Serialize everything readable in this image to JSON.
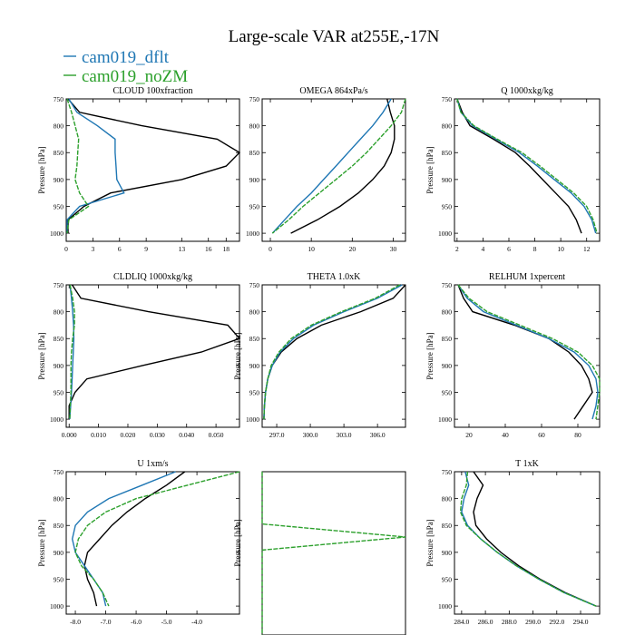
{
  "figure": {
    "title": "Large-scale VAR at255E,-17N",
    "legend": [
      {
        "label": "cam019_dflt",
        "color": "#1f77b4"
      },
      {
        "label": "cam019_noZM",
        "color": "#2ca02c"
      }
    ]
  },
  "chart_data": [
    {
      "type": "line",
      "title": "CLOUD  100xfraction",
      "ylabel": "Pressure [hPa]",
      "y_reversed": true,
      "xlim": [
        0,
        19.5
      ],
      "ylim": [
        750,
        1015
      ],
      "xticks": [
        0,
        3,
        6,
        9,
        13,
        16,
        18
      ],
      "xtick_labels": [
        "0",
        "3",
        "6",
        "9",
        "13",
        "16",
        "18"
      ],
      "yticks": [
        750,
        800,
        850,
        900,
        950,
        1000
      ],
      "y": [
        750,
        775,
        800,
        825,
        850,
        875,
        900,
        925,
        950,
        975,
        1000
      ],
      "series": [
        {
          "color": "#000000",
          "x": [
            0.2,
            1.5,
            8.5,
            17.0,
            19.5,
            18.0,
            13.0,
            5.0,
            2.0,
            0.2,
            0.2
          ]
        },
        {
          "color": "#1f77b4",
          "x": [
            0.3,
            1.2,
            3.5,
            5.5,
            5.5,
            5.6,
            5.7,
            6.5,
            1.5,
            0.1,
            0.1
          ]
        },
        {
          "color": "#2ca02c",
          "x": [
            0.1,
            0.6,
            1.0,
            1.4,
            1.3,
            1.2,
            1.0,
            1.5,
            2.5,
            0.3,
            0.1
          ]
        }
      ]
    },
    {
      "type": "line",
      "title": "OMEGA  864xPa/s",
      "ylabel": "",
      "y_reversed": true,
      "xlim": [
        -2,
        33
      ],
      "ylim": [
        750,
        1015
      ],
      "xticks": [
        0,
        10,
        20,
        30
      ],
      "xtick_labels": [
        "0",
        "10",
        "20",
        "30"
      ],
      "yticks": [
        750,
        800,
        850,
        900,
        950,
        1000
      ],
      "y": [
        750,
        775,
        800,
        825,
        850,
        875,
        900,
        925,
        950,
        975,
        1000
      ],
      "series": [
        {
          "color": "#000000",
          "x": [
            28.5,
            29.3,
            30.3,
            30.3,
            29.5,
            27.8,
            25.0,
            21.5,
            17.0,
            11.5,
            5.0
          ]
        },
        {
          "color": "#1f77b4",
          "x": [
            29.5,
            27.5,
            25.0,
            22.0,
            19.0,
            16.0,
            13.0,
            10.0,
            6.5,
            3.5,
            0.5
          ]
        },
        {
          "color": "#2ca02c",
          "x": [
            33.0,
            32.0,
            29.5,
            26.5,
            23.5,
            20.0,
            16.0,
            12.0,
            8.0,
            4.5,
            0.5
          ]
        }
      ]
    },
    {
      "type": "line",
      "title": "Q  1000xkg/kg",
      "ylabel": "Pressure [hPa]",
      "y_reversed": true,
      "xlim": [
        1.8,
        13
      ],
      "ylim": [
        750,
        1015
      ],
      "xticks": [
        2,
        4,
        6,
        8,
        10,
        12
      ],
      "xtick_labels": [
        "2",
        "4",
        "6",
        "8",
        "10",
        "12"
      ],
      "yticks": [
        750,
        800,
        850,
        900,
        950,
        1000
      ],
      "y": [
        750,
        775,
        800,
        825,
        850,
        875,
        900,
        925,
        950,
        975,
        1000
      ],
      "series": [
        {
          "color": "#000000",
          "x": [
            2.0,
            2.4,
            3.0,
            4.8,
            6.5,
            7.6,
            8.6,
            9.6,
            10.6,
            11.2,
            11.6
          ]
        },
        {
          "color": "#1f77b4",
          "x": [
            2.0,
            2.3,
            3.2,
            5.0,
            6.8,
            8.2,
            9.5,
            10.8,
            11.8,
            12.4,
            12.7
          ]
        },
        {
          "color": "#2ca02c",
          "x": [
            2.0,
            2.3,
            3.3,
            5.1,
            7.0,
            8.4,
            9.7,
            11.0,
            12.0,
            12.5,
            12.8
          ]
        }
      ]
    },
    {
      "type": "line",
      "title": "CLDLIQ  1000xkg/kg",
      "ylabel": "Pressure [hPa]",
      "y_reversed": true,
      "xlim": [
        -0.001,
        0.058
      ],
      "ylim": [
        750,
        1015
      ],
      "xticks": [
        0,
        0.01,
        0.02,
        0.03,
        0.04,
        0.05
      ],
      "xtick_labels": [
        "0.000",
        "0.010",
        "0.020",
        "0.030",
        "0.040",
        "0.050"
      ],
      "yticks": [
        750,
        800,
        850,
        900,
        950,
        1000
      ],
      "y": [
        750,
        775,
        800,
        825,
        850,
        875,
        900,
        925,
        950,
        975,
        1000
      ],
      "series": [
        {
          "color": "#000000",
          "x": [
            0.001,
            0.004,
            0.027,
            0.054,
            0.058,
            0.045,
            0.025,
            0.006,
            0.002,
            0.0,
            0.0
          ]
        },
        {
          "color": "#1f77b4",
          "x": [
            0.0003,
            0.0008,
            0.0012,
            0.0015,
            0.0016,
            0.0014,
            0.0012,
            0.001,
            0.0008,
            0.0005,
            0.0002
          ]
        },
        {
          "color": "#2ca02c",
          "x": [
            0.0003,
            0.0012,
            0.0018,
            0.0018,
            0.0012,
            0.0008,
            0.0006,
            0.0006,
            0.0006,
            0.0004,
            0.0002
          ]
        }
      ]
    },
    {
      "type": "line",
      "title": "THETA  1.0xK",
      "ylabel": "Pressure [hPa]",
      "y_reversed": true,
      "xlim": [
        295.7,
        308.5
      ],
      "ylim": [
        750,
        1015
      ],
      "xticks": [
        297,
        300,
        303,
        306
      ],
      "xtick_labels": [
        "297.0",
        "300.0",
        "303.0",
        "306.0"
      ],
      "yticks": [
        750,
        800,
        850,
        900,
        950,
        1000
      ],
      "y": [
        750,
        775,
        800,
        825,
        850,
        875,
        900,
        925,
        950,
        975,
        1000
      ],
      "series": [
        {
          "color": "#000000",
          "x": [
            308.5,
            307.4,
            304.5,
            301.0,
            298.8,
            297.4,
            296.6,
            296.2,
            296.0,
            295.9,
            295.85
          ]
        },
        {
          "color": "#1f77b4",
          "x": [
            308.2,
            306.0,
            303.0,
            300.3,
            298.5,
            297.3,
            296.6,
            296.2,
            296.0,
            295.9,
            295.85
          ]
        },
        {
          "color": "#2ca02c",
          "x": [
            308.0,
            305.8,
            302.8,
            300.1,
            298.3,
            297.2,
            296.5,
            296.2,
            296.0,
            295.9,
            295.85
          ]
        }
      ]
    },
    {
      "type": "line",
      "title": "RELHUM  1xpercent",
      "ylabel": "Pressure [hPa]",
      "y_reversed": true,
      "xlim": [
        12,
        92
      ],
      "ylim": [
        750,
        1015
      ],
      "xticks": [
        20,
        40,
        60,
        80
      ],
      "xtick_labels": [
        "20",
        "40",
        "60",
        "80"
      ],
      "yticks": [
        750,
        800,
        850,
        900,
        950,
        1000
      ],
      "y": [
        750,
        775,
        800,
        825,
        850,
        875,
        900,
        925,
        950,
        975,
        1000
      ],
      "series": [
        {
          "color": "#000000",
          "x": [
            14,
            17,
            22,
            45,
            64,
            75,
            82,
            86,
            88,
            83,
            78
          ]
        },
        {
          "color": "#1f77b4",
          "x": [
            14,
            19,
            28,
            46,
            64,
            78,
            86,
            90,
            91,
            90,
            88
          ]
        },
        {
          "color": "#2ca02c",
          "x": [
            14,
            20,
            30,
            48,
            66,
            80,
            88,
            92,
            92,
            91,
            90
          ]
        }
      ]
    },
    {
      "type": "line",
      "title": "U  1xm/s",
      "ylabel": "Pressure [hPa]",
      "y_reversed": true,
      "xlim": [
        -8.3,
        -2.6
      ],
      "ylim": [
        750,
        1015
      ],
      "xticks": [
        -8,
        -7,
        -6,
        -5,
        -4
      ],
      "xtick_labels": [
        "-8.0",
        "-7.0",
        "-6.0",
        "-5.0",
        "-4.0"
      ],
      "yticks": [
        750,
        800,
        850,
        900,
        950,
        1000
      ],
      "y": [
        750,
        775,
        800,
        825,
        850,
        875,
        900,
        925,
        950,
        975,
        1000
      ],
      "series": [
        {
          "color": "#000000",
          "x": [
            -4.4,
            -5.0,
            -5.7,
            -6.3,
            -6.8,
            -7.2,
            -7.6,
            -7.7,
            -7.6,
            -7.4,
            -7.3
          ]
        },
        {
          "color": "#1f77b4",
          "x": [
            -4.7,
            -5.8,
            -6.9,
            -7.6,
            -8.0,
            -8.1,
            -8.0,
            -7.7,
            -7.4,
            -7.1,
            -7.0
          ]
        },
        {
          "color": "#2ca02c",
          "x": [
            -2.6,
            -4.3,
            -6.0,
            -7.0,
            -7.6,
            -7.9,
            -8.0,
            -7.8,
            -7.4,
            -7.1,
            -6.9
          ]
        }
      ]
    },
    {
      "type": "line",
      "title": "",
      "ylabel": "Pressure [hPa]",
      "y_reversed": true,
      "xlim": [
        0,
        1
      ],
      "ylim": [
        750,
        1000
      ],
      "xticks": [],
      "xtick_labels": [],
      "yticks": [],
      "ytick_labels": [],
      "y": [
        750,
        830,
        850,
        870,
        1000
      ],
      "series": [
        {
          "color": "#2ca02c",
          "x": [
            0,
            0,
            1,
            0,
            0
          ]
        }
      ]
    },
    {
      "type": "line",
      "title": "T  1xK",
      "ylabel": "Pressure [hPa]",
      "y_reversed": true,
      "xlim": [
        283.4,
        295.6
      ],
      "ylim": [
        750,
        1015
      ],
      "xticks": [
        284,
        286,
        288,
        290,
        292,
        294
      ],
      "xtick_labels": [
        "284.0",
        "286.0",
        "288.0",
        "290.0",
        "292.0",
        "294.0"
      ],
      "yticks": [
        750,
        800,
        850,
        900,
        950,
        1000
      ],
      "y": [
        750,
        775,
        800,
        825,
        850,
        875,
        900,
        925,
        950,
        975,
        1000
      ],
      "series": [
        {
          "color": "#000000",
          "x": [
            285.0,
            285.8,
            285.3,
            285.0,
            285.2,
            286.1,
            287.3,
            288.8,
            290.6,
            292.7,
            295.3
          ]
        },
        {
          "color": "#1f77b4",
          "x": [
            284.3,
            284.6,
            284.2,
            284.0,
            284.5,
            285.6,
            287.0,
            288.6,
            290.5,
            292.6,
            295.3
          ]
        },
        {
          "color": "#2ca02c",
          "x": [
            284.5,
            284.4,
            284.0,
            283.9,
            284.4,
            285.6,
            287.0,
            288.6,
            290.5,
            292.6,
            295.3
          ]
        }
      ]
    }
  ]
}
